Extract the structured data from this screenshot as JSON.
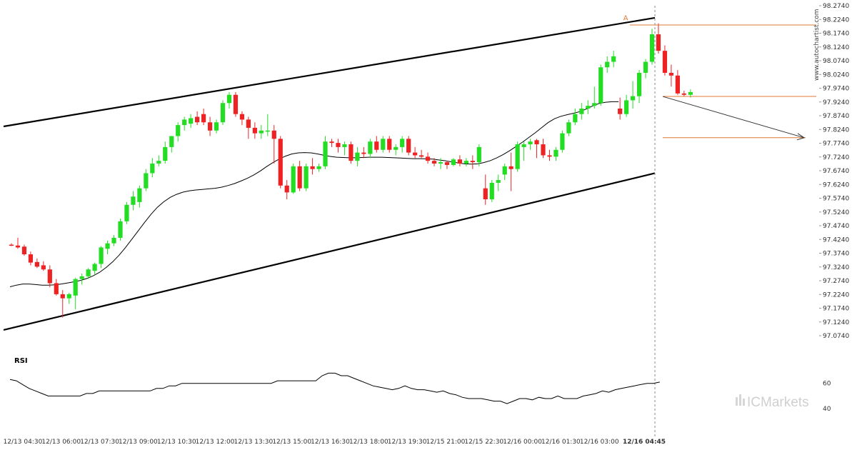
{
  "chart_data": {
    "type": "candlestick",
    "instrument_hint": "Forex candlestick chart with ascending channel, 20-period MA and RSI panel",
    "y_axis": {
      "ticks": [
        "98.2740",
        "98.2240",
        "98.1740",
        "98.1240",
        "98.0740",
        "98.0240",
        "97.9740",
        "97.9240",
        "97.8740",
        "97.8240",
        "97.7740",
        "97.7240",
        "97.6740",
        "97.6240",
        "97.5740",
        "97.5240",
        "97.4740",
        "97.4240",
        "97.3740",
        "97.3240",
        "97.2740",
        "97.2240",
        "97.1740",
        "97.1240",
        "97.0740"
      ],
      "range": [
        97.074,
        98.274
      ]
    },
    "x_axis": {
      "ticks": [
        "12/13 04:30",
        "12/13 06:00",
        "12/13 07:30",
        "12/13 09:00",
        "12/13 10:30",
        "12/13 12:00",
        "12/13 13:30",
        "12/13 15:00",
        "12/13 16:30",
        "12/13 18:00",
        "12/13 19:30",
        "12/15 21:00",
        "12/15 22:30",
        "12/16 00:00",
        "12/16 01:30",
        "12/16 03:00",
        "12/16 04:45"
      ],
      "tick_x_index": [
        2,
        8,
        14,
        20,
        26,
        32,
        38,
        44,
        50,
        56,
        62,
        68,
        74,
        80,
        86,
        92,
        99
      ]
    },
    "candles": [
      [
        97.405,
        97.41,
        97.4,
        97.402
      ],
      [
        97.402,
        97.43,
        97.39,
        97.395
      ],
      [
        97.398,
        97.405,
        97.365,
        97.37
      ],
      [
        97.37,
        97.38,
        97.33,
        97.34
      ],
      [
        97.342,
        97.355,
        97.32,
        97.325
      ],
      [
        97.33,
        97.345,
        97.31,
        97.315
      ],
      [
        97.315,
        97.33,
        97.25,
        97.265
      ],
      [
        97.265,
        97.28,
        97.22,
        97.225
      ],
      [
        97.225,
        97.24,
        97.14,
        97.21
      ],
      [
        97.21,
        97.23,
        97.19,
        97.225
      ],
      [
        97.22,
        97.285,
        97.17,
        97.28
      ],
      [
        97.28,
        97.3,
        97.26,
        97.29
      ],
      [
        97.29,
        97.32,
        97.28,
        97.315
      ],
      [
        97.31,
        97.34,
        97.295,
        97.335
      ],
      [
        97.335,
        97.4,
        97.32,
        97.395
      ],
      [
        97.39,
        97.42,
        97.37,
        97.41
      ],
      [
        97.41,
        97.44,
        97.4,
        97.43
      ],
      [
        97.43,
        97.5,
        97.42,
        97.49
      ],
      [
        97.49,
        97.56,
        97.48,
        97.55
      ],
      [
        97.55,
        97.6,
        97.53,
        97.58
      ],
      [
        97.56,
        97.62,
        97.54,
        97.61
      ],
      [
        97.61,
        97.68,
        97.6,
        97.665
      ],
      [
        97.665,
        97.72,
        97.65,
        97.7
      ],
      [
        97.7,
        97.73,
        97.69,
        97.71
      ],
      [
        97.71,
        97.78,
        97.7,
        97.76
      ],
      [
        97.76,
        97.8,
        97.74,
        97.8
      ],
      [
        97.8,
        97.85,
        97.78,
        97.84
      ],
      [
        97.84,
        97.87,
        97.82,
        97.86
      ],
      [
        97.845,
        97.88,
        97.83,
        97.865
      ],
      [
        97.87,
        97.89,
        97.84,
        97.85
      ],
      [
        97.88,
        97.9,
        97.84,
        97.85
      ],
      [
        97.85,
        97.87,
        97.8,
        97.82
      ],
      [
        97.82,
        97.86,
        97.81,
        97.85
      ],
      [
        97.85,
        97.93,
        97.84,
        97.92
      ],
      [
        97.92,
        97.96,
        97.9,
        97.95
      ],
      [
        97.95,
        97.96,
        97.87,
        97.88
      ],
      [
        97.88,
        97.89,
        97.84,
        97.86
      ],
      [
        97.86,
        97.87,
        97.79,
        97.83
      ],
      [
        97.83,
        97.85,
        97.79,
        97.81
      ],
      [
        97.81,
        97.84,
        97.79,
        97.82
      ],
      [
        97.82,
        97.88,
        97.8,
        97.82
      ],
      [
        97.82,
        97.84,
        97.7,
        97.79
      ],
      [
        97.79,
        97.8,
        97.61,
        97.62
      ],
      [
        97.62,
        97.64,
        97.57,
        97.595
      ],
      [
        97.595,
        97.7,
        97.59,
        97.69
      ],
      [
        97.69,
        97.71,
        97.6,
        97.61
      ],
      [
        97.61,
        97.7,
        97.6,
        97.69
      ],
      [
        97.69,
        97.72,
        97.66,
        97.68
      ],
      [
        97.68,
        97.7,
        97.67,
        97.69
      ],
      [
        97.69,
        97.8,
        97.68,
        97.78
      ],
      [
        97.78,
        97.79,
        97.76,
        97.775
      ],
      [
        97.775,
        97.79,
        97.74,
        97.76
      ],
      [
        97.76,
        97.78,
        97.73,
        97.77
      ],
      [
        97.77,
        97.78,
        97.7,
        97.71
      ],
      [
        97.71,
        97.76,
        97.69,
        97.74
      ],
      [
        97.74,
        97.76,
        97.72,
        97.735
      ],
      [
        97.735,
        97.79,
        97.72,
        97.78
      ],
      [
        97.78,
        97.8,
        97.74,
        97.75
      ],
      [
        97.75,
        97.8,
        97.74,
        97.79
      ],
      [
        97.79,
        97.8,
        97.74,
        97.75
      ],
      [
        97.75,
        97.77,
        97.73,
        97.76
      ],
      [
        97.76,
        97.8,
        97.74,
        97.79
      ],
      [
        97.79,
        97.8,
        97.73,
        97.74
      ],
      [
        97.74,
        97.76,
        97.72,
        97.73
      ],
      [
        97.73,
        97.75,
        97.72,
        97.725
      ],
      [
        97.725,
        97.74,
        97.7,
        97.71
      ],
      [
        97.71,
        97.72,
        97.69,
        97.7
      ],
      [
        97.7,
        97.72,
        97.68,
        97.705
      ],
      [
        97.705,
        97.71,
        97.68,
        97.695
      ],
      [
        97.695,
        97.72,
        97.69,
        97.715
      ],
      [
        97.715,
        97.73,
        97.69,
        97.7
      ],
      [
        97.7,
        97.72,
        97.69,
        97.71
      ],
      [
        97.71,
        97.73,
        97.68,
        97.705
      ],
      [
        97.705,
        97.77,
        97.69,
        97.76
      ],
      [
        97.61,
        97.66,
        97.55,
        97.57
      ],
      [
        97.57,
        97.64,
        97.56,
        97.63
      ],
      [
        97.63,
        97.66,
        97.6,
        97.64
      ],
      [
        97.66,
        97.7,
        97.64,
        97.69
      ],
      [
        97.69,
        97.74,
        97.6,
        97.68
      ],
      [
        97.68,
        97.78,
        97.67,
        97.77
      ],
      [
        97.76,
        97.78,
        97.71,
        97.77
      ],
      [
        97.77,
        97.79,
        97.75,
        97.78
      ],
      [
        97.785,
        97.79,
        97.72,
        97.77
      ],
      [
        97.77,
        97.79,
        97.72,
        97.73
      ],
      [
        97.73,
        97.75,
        97.71,
        97.725
      ],
      [
        97.725,
        97.76,
        97.71,
        97.75
      ],
      [
        97.75,
        97.82,
        97.74,
        97.81
      ],
      [
        97.81,
        97.86,
        97.8,
        97.85
      ],
      [
        97.85,
        97.9,
        97.84,
        97.88
      ],
      [
        97.88,
        97.92,
        97.86,
        97.9
      ],
      [
        97.9,
        97.93,
        97.88,
        97.91
      ],
      [
        97.91,
        97.98,
        97.9,
        97.92
      ],
      [
        97.92,
        98.06,
        97.91,
        98.05
      ],
      [
        98.05,
        98.09,
        98.03,
        98.07
      ],
      [
        98.07,
        98.11,
        98.05,
        98.09
      ],
      [
        97.9,
        97.94,
        97.86,
        97.88
      ],
      [
        97.88,
        97.95,
        97.87,
        97.93
      ],
      [
        97.93,
        98.0,
        97.9,
        97.945
      ],
      [
        97.945,
        98.04,
        97.92,
        98.03
      ],
      [
        98.03,
        98.08,
        98.01,
        98.07
      ],
      [
        98.07,
        98.19,
        98.06,
        98.17
      ],
      [
        98.17,
        98.21,
        98.1,
        98.11
      ],
      [
        98.11,
        98.13,
        98.02,
        98.03
      ],
      [
        98.03,
        98.06,
        97.98,
        98.02
      ],
      [
        98.02,
        98.04,
        97.95,
        97.955
      ],
      [
        97.955,
        97.965,
        97.945,
        97.95
      ],
      [
        97.95,
        97.97,
        97.94,
        97.96
      ]
    ],
    "moving_average": [
      97.252,
      97.258,
      97.262,
      97.262,
      97.26,
      97.258,
      97.258,
      97.259,
      97.262,
      97.266,
      97.27,
      97.275,
      97.282,
      97.292,
      97.305,
      97.322,
      97.342,
      97.366,
      97.394,
      97.424,
      97.455,
      97.486,
      97.515,
      97.541,
      97.561,
      97.577,
      97.588,
      97.596,
      97.601,
      97.604,
      97.606,
      97.608,
      97.61,
      97.614,
      97.62,
      97.627,
      97.636,
      97.646,
      97.658,
      97.672,
      97.688,
      97.703,
      97.716,
      97.727,
      97.735,
      97.739,
      97.74,
      97.739,
      97.735,
      97.73,
      97.726,
      97.723,
      97.722,
      97.721,
      97.721,
      97.722,
      97.723,
      97.723,
      97.723,
      97.722,
      97.721,
      97.72,
      97.719,
      97.718,
      97.718,
      97.717,
      97.716,
      97.713,
      97.71,
      97.706,
      97.702,
      97.699,
      97.698,
      97.699,
      97.704,
      97.711,
      97.721,
      97.733,
      97.747,
      97.762,
      97.778,
      97.795,
      97.812,
      97.831,
      97.849,
      97.863,
      97.872,
      97.878,
      97.883,
      97.889,
      97.899,
      97.91,
      97.919,
      97.923,
      97.925,
      97.925
    ],
    "moving_average_start_index": 0,
    "channel": {
      "upper": [
        {
          "i": -1,
          "v": 97.835
        },
        {
          "i": 101,
          "v": 98.23
        }
      ],
      "lower": [
        {
          "i": -1,
          "v": 97.095
        },
        {
          "i": 101,
          "v": 97.665
        }
      ]
    },
    "levels": [
      98.204,
      97.944,
      97.794
    ],
    "forecast_arrow": {
      "from": {
        "i": 100,
        "v": 97.944
      },
      "to": {
        "i": 122,
        "v": 97.794
      }
    },
    "marker": {
      "label": "A",
      "i": 96,
      "v": 98.215
    },
    "rsi": {
      "title": "RSI",
      "ticks": [
        "60",
        "40"
      ],
      "range": [
        30,
        75
      ],
      "values": [
        63,
        62,
        59,
        56,
        54,
        52,
        50,
        50,
        50,
        50,
        50,
        50,
        52,
        52,
        54,
        54,
        54,
        54,
        54,
        54,
        54,
        54,
        54,
        56,
        56,
        58,
        58,
        60,
        60,
        60,
        60,
        60,
        60,
        60,
        60,
        60,
        60,
        60,
        60,
        60,
        60,
        60,
        62,
        62,
        62,
        62,
        62,
        62,
        62,
        66,
        68,
        68,
        66,
        66,
        64,
        62,
        60,
        58,
        57,
        56,
        55,
        56,
        58,
        56,
        55,
        55,
        54,
        53,
        54,
        52,
        51,
        49,
        48,
        48,
        48,
        47,
        46,
        46,
        44,
        46,
        48,
        48,
        47,
        49,
        48,
        48,
        50,
        48,
        48,
        48,
        50,
        51,
        52,
        54,
        53,
        55,
        56,
        57,
        58,
        59,
        60,
        60,
        61
      ],
      "values_note_ignored": true
    }
  },
  "chart_text": {
    "rsi_title": "RSI",
    "watermark": "www.autochartist.com",
    "brand": "ICMarkets",
    "marker_label": "A"
  },
  "colors": {
    "bull": "#22dd22",
    "bear": "#ee2222",
    "level": "#e07a36",
    "channel": "#000000",
    "ma": "#000000",
    "grid_axis": "#999999"
  }
}
